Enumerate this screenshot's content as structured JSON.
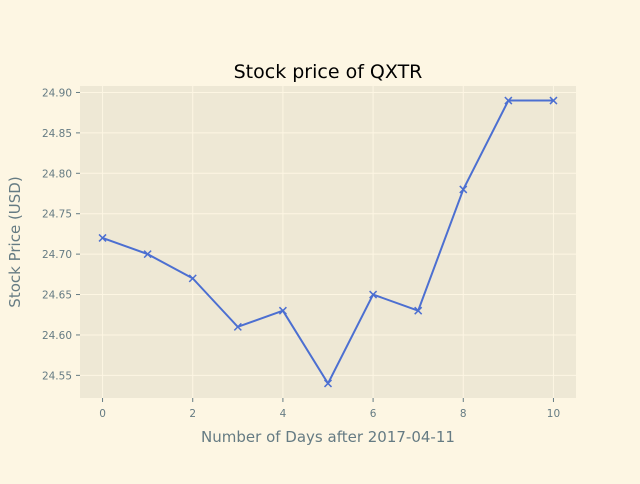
{
  "chart_data": {
    "type": "line",
    "title": "Stock price of QXTR",
    "xlabel": "Number of Days after 2017-04-11",
    "ylabel": "Stock Price (USD)",
    "xlim": [
      -0.5,
      10.5
    ],
    "ylim": [
      24.522,
      24.908
    ],
    "xticks": [
      0,
      2,
      4,
      6,
      8,
      10
    ],
    "xtick_labels": [
      "0",
      "2",
      "4",
      "6",
      "8",
      "10"
    ],
    "yticks": [
      24.55,
      24.6,
      24.65,
      24.7,
      24.75,
      24.8,
      24.85,
      24.9
    ],
    "ytick_labels": [
      "24.55",
      "24.60",
      "24.65",
      "24.70",
      "24.75",
      "24.80",
      "24.85",
      "24.90"
    ],
    "grid": true,
    "marker": "x",
    "series": [
      {
        "x": [
          0,
          1,
          2,
          3,
          4,
          5,
          6,
          7,
          8,
          9,
          10
        ],
        "values": [
          24.72,
          24.7,
          24.67,
          24.61,
          24.63,
          24.54,
          24.65,
          24.63,
          24.78,
          24.89,
          24.89
        ]
      }
    ],
    "colors": {
      "background": "#fdf6e3",
      "plot_background": "#eee8d5",
      "grid": "#fdf6e3",
      "line": "#4c6fd1",
      "text": "#657b83",
      "title": "#000000"
    }
  }
}
